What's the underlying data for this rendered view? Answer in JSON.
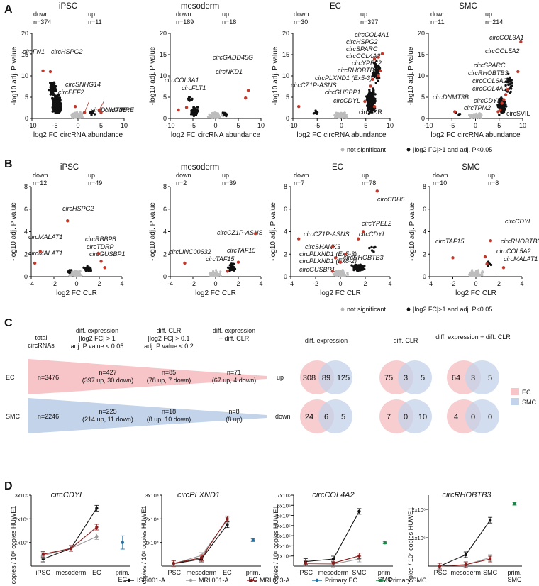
{
  "panels": {
    "A": "A",
    "B": "B",
    "C": "C",
    "D": "D"
  },
  "panel_a": {
    "xlabel": "log2 FC circRNA abundance",
    "ylabel": "-log10 adj. P value",
    "xticks": [
      "-10",
      "-5",
      "0",
      "5",
      "10"
    ],
    "yticks": [
      "0",
      "5",
      "10",
      "15",
      "20"
    ],
    "plots": [
      {
        "title": "iPSC",
        "down": "down",
        "up": "up",
        "down_n": "n=374",
        "up_n": "n=11",
        "labels": [
          "circFN1",
          "circHSPG2",
          "circSNHG14",
          "circEEF2",
          "circDNMT3B",
          "circFIRRE"
        ]
      },
      {
        "title": "mesoderm",
        "down": "down",
        "up": "up",
        "down_n": "n=189",
        "up_n": "n=18",
        "labels": [
          "circCOL3A1",
          "circFLT1",
          "circGADD45G",
          "circNKD1"
        ]
      },
      {
        "title": "EC",
        "down": "down",
        "up": "up",
        "down_n": "n=30",
        "up_n": "n=397",
        "labels": [
          "circCOL4A1",
          "circHSPG2",
          "circSPARC",
          "circCOL4A2",
          "circYPEL2",
          "circRHOBTB3",
          "circPLXND1 (Ex5-3)",
          "circCZ1P-ASNS",
          "circGUSBP1",
          "circCDYL",
          "circKDR"
        ]
      },
      {
        "title": "SMC",
        "down": "down",
        "up": "up",
        "down_n": "n=11",
        "up_n": "n=214",
        "labels": [
          "circCOL3A1",
          "circCOL5A2",
          "circSPARC",
          "circRHOBTB3",
          "circCOL6A2",
          "circCOL4A2",
          "circDNMT3B",
          "circCDYL",
          "circTPM2",
          "circSVIL"
        ]
      }
    ],
    "legend": {
      "ns": "not significant",
      "sig": "|log2 FC|>1 and adj. P<0.05"
    }
  },
  "panel_b": {
    "xlabel": "log2 FC CLR",
    "ylabel": "-log10 adj. P value",
    "xticks": [
      "-4",
      "-2",
      "0",
      "2",
      "4"
    ],
    "yticks": [
      "0",
      "2",
      "4",
      "6",
      "8"
    ],
    "plots": [
      {
        "title": "iPSC",
        "down": "down",
        "up": "up",
        "down_n": "n=12",
        "up_n": "n=49",
        "labels": [
          "circHSPG2",
          "circMALAT1",
          "circMALAT1",
          "circRBBP8",
          "circTDRP",
          "circGUSBP1"
        ]
      },
      {
        "title": "mesoderm",
        "down": "down",
        "up": "up",
        "down_n": "n=2",
        "up_n": "n=39",
        "labels": [
          "circCZ1P-ASNS",
          "circLINC00632",
          "circTAF15",
          "circTAF15"
        ]
      },
      {
        "title": "EC",
        "down": "down",
        "up": "up",
        "down_n": "n=7",
        "up_n": "n=78",
        "labels": [
          "circCDH5",
          "circYPEL2",
          "circCZ1P-ASNS",
          "circCDYL",
          "circSHANK3",
          "circPLXND1 (Ex5-3)",
          "circPLXND1 (Ex8-2)",
          "circRHOBTB3",
          "circGUSBP1"
        ]
      },
      {
        "title": "SMC",
        "down": "down",
        "up": "up",
        "down_n": "n=10",
        "up_n": "n=8",
        "labels": [
          "circCDYL",
          "circRHOBTB3",
          "circTAF15",
          "circCOL5A2",
          "circMALAT1"
        ]
      }
    ],
    "legend": {
      "ns": "not significant",
      "sig": "|log2 FC|>1 and adj. P<0.05"
    }
  },
  "panel_c": {
    "headers": [
      {
        "l1": "total",
        "l2": "circRNAs"
      },
      {
        "l1": "diff. expression",
        "l2": "|log2 FC| > 1",
        "l3": "adj. P value < 0.05"
      },
      {
        "l1": "diff. CLR",
        "l2": "|log2 FC| > 0.1",
        "l3": "adj. P value < 0.2"
      },
      {
        "l1": "diff. expression",
        "l2": "+ diff. CLR"
      }
    ],
    "rows": [
      {
        "cell": "EC",
        "total": "n=3476",
        "de": "n=427",
        "de_sub": "(397 up, 30 down)",
        "clr": "n=85",
        "clr_sub": "(78 up, 7 down)",
        "both": "n=71",
        "both_sub": "(67 up, 4 down)",
        "color": "#f7c4c8"
      },
      {
        "cell": "SMC",
        "total": "n=2246",
        "de": "n=225",
        "de_sub": "(214 up, 11 down)",
        "clr": "n=18",
        "clr_sub": "(8 up, 10 down)",
        "both": "n=8",
        "both_sub": "(8 up)",
        "color": "#c3d3ea"
      }
    ],
    "venn_headers": [
      "diff. expression",
      "diff. CLR",
      "diff. expression\n+ diff. CLR"
    ],
    "venn_rows": [
      {
        "label": "up",
        "sets": [
          [
            "308",
            "89",
            "125"
          ],
          [
            "75",
            "3",
            "5"
          ],
          [
            "64",
            "3",
            "5"
          ]
        ]
      },
      {
        "label": "down",
        "sets": [
          [
            "24",
            "6",
            "5"
          ],
          [
            "7",
            "0",
            "10"
          ],
          [
            "4",
            "0",
            "0"
          ]
        ]
      }
    ],
    "legend": [
      {
        "label": "EC",
        "color": "#f7c4c8"
      },
      {
        "label": "SMC",
        "color": "#c3d3ea"
      }
    ]
  },
  "panel_d": {
    "plots": [
      {
        "title": "circCDYL",
        "ytick_labels": [
          "1x10⁵",
          "2x10⁵",
          "3x10⁵"
        ],
        "ylabel": "copies / 10⁶ copies HUWE1",
        "xticks": [
          "iPSC",
          "mesoderm",
          "EC",
          "prim.\nEC"
        ]
      },
      {
        "title": "circPLXND1",
        "ytick_labels": [
          "1x10⁴",
          "2x10⁴",
          "3x10⁴"
        ],
        "ylabel": "copies / 10⁶ copies HUWE1",
        "xticks": [
          "iPSC",
          "mesoderm",
          "EC",
          "prim.\nEC"
        ]
      },
      {
        "title": "circCOL4A2",
        "ytick_labels": [
          "1x10⁵",
          "2x10⁵",
          "3x10⁵",
          "4x10⁵",
          "5x10⁵",
          "6x10⁵",
          "7x10⁵"
        ],
        "ylabel": "copies / 10⁶ copies HUWE1",
        "xticks": [
          "iPSC",
          "mesoderm",
          "SMC",
          "prim.\nSMC"
        ]
      },
      {
        "title": "circRHOBTB3",
        "ytick_labels": [
          "1x10⁶",
          "2x10⁶"
        ],
        "ylabel": "opies / 10⁶ copies HUWE1",
        "xticks": [
          "iPSC",
          "mesoderm",
          "SMC",
          "prim.\nSMC"
        ]
      }
    ],
    "legend": [
      {
        "label": "ISFi001-A",
        "color": "#111111"
      },
      {
        "label": "MRIi001-A",
        "color": "#9a9a9a"
      },
      {
        "label": "MRIi003-A",
        "color": "#8b1a1a"
      },
      {
        "label": "Primary EC",
        "color": "#2471a3"
      },
      {
        "label": "Primary SMC",
        "color": "#1e8449"
      }
    ]
  }
}
